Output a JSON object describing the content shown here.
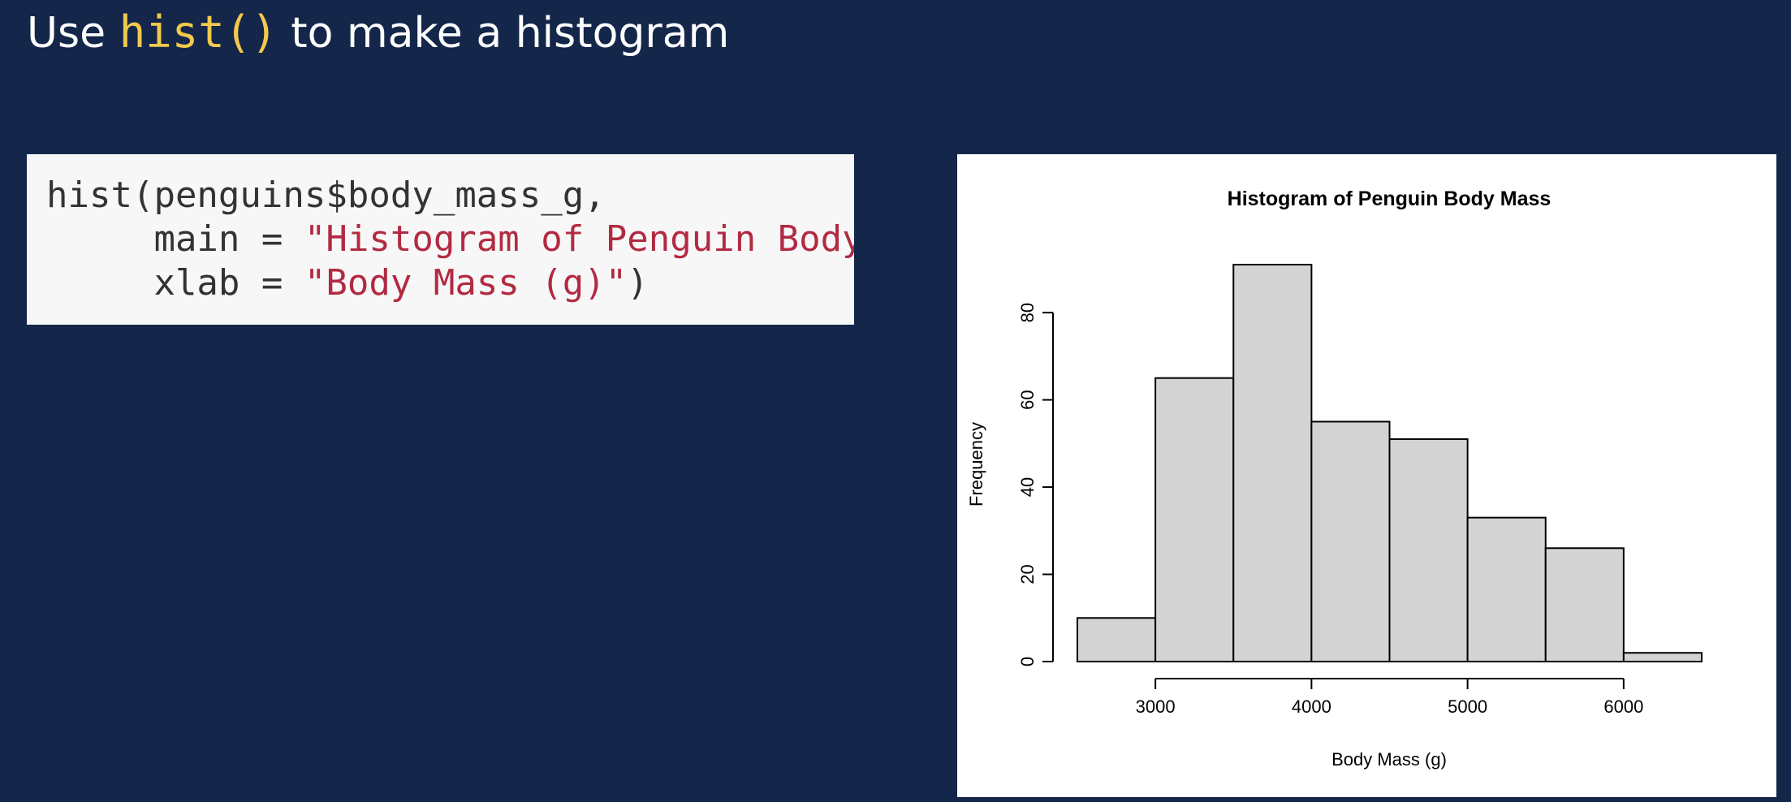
{
  "slide": {
    "title_before": "Use ",
    "title_code": "hist()",
    "title_after": " to make a histogram"
  },
  "code": {
    "line1": "hist(penguins$body_mass_g,",
    "line2_indent": "     main = ",
    "line2_string": "\"Histogram of Penguin Body Mass\",",
    "line3_indent": "     xlab = ",
    "line3_string": "\"Body Mass (g)\"",
    "line3_end": ")"
  },
  "chart_data": {
    "type": "bar",
    "title": "Histogram of Penguin Body Mass",
    "xlabel": "Body Mass (g)",
    "ylabel": "Frequency",
    "bins": [
      {
        "start": 2500,
        "end": 3000,
        "count": 10
      },
      {
        "start": 3000,
        "end": 3500,
        "count": 65
      },
      {
        "start": 3500,
        "end": 4000,
        "count": 91
      },
      {
        "start": 4000,
        "end": 4500,
        "count": 55
      },
      {
        "start": 4500,
        "end": 5000,
        "count": 51
      },
      {
        "start": 5000,
        "end": 5500,
        "count": 33
      },
      {
        "start": 5500,
        "end": 6000,
        "count": 26
      },
      {
        "start": 6000,
        "end": 6500,
        "count": 2
      }
    ],
    "xticks": [
      3000,
      4000,
      5000,
      6000
    ],
    "yticks": [
      0,
      20,
      40,
      60,
      80
    ],
    "xlim": [
      2500,
      6500
    ],
    "ylim": [
      0,
      91
    ],
    "bar_color": "#d3d3d3",
    "grid": false
  }
}
